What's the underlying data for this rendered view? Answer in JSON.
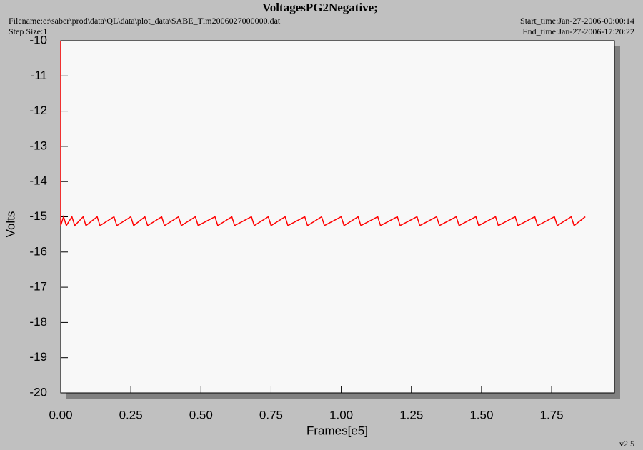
{
  "chart_data": {
    "type": "line",
    "title": "VoltagesPG2Negative;",
    "filename": "Filename:e:\\saber\\prod\\data\\QL\\data\\plot_data\\SABE_Tlm2006027000000.dat",
    "step_size": "Step Size:1",
    "start_time": "Start_time:Jan-27-2006-00:00:14",
    "end_time": "End_time:Jan-27-2006-17:20:22",
    "version": "v2.5",
    "x_label": "Frames[e5]",
    "y_label": "Volts",
    "xlim": [
      0,
      1.974
    ],
    "xticks": [
      {
        "value": 0,
        "label": "0.00"
      },
      0.25,
      {
        "value": 0.5,
        "label": "0.50"
      },
      0.75,
      {
        "value": 1,
        "label": "1.00"
      },
      1.25,
      {
        "value": 1.5,
        "label": "1.50"
      },
      1.75
    ],
    "ylim": [
      -20,
      -10
    ],
    "yticks": [
      -10,
      -11,
      -12,
      -13,
      -14,
      -15,
      -16,
      -17,
      -18,
      -19,
      -20
    ],
    "series": [
      {
        "color": "#ff0000",
        "x": [
          0,
          0,
          0.01,
          0.02,
          0.04,
          0.05,
          0.08,
          0.09,
          0.13,
          0.14,
          0.19,
          0.2,
          0.25,
          0.26,
          0.3,
          0.31,
          0.36,
          0.37,
          0.42,
          0.43,
          0.48,
          0.49,
          0.55,
          0.56,
          0.61,
          0.62,
          0.68,
          0.69,
          0.74,
          0.75,
          0.8,
          0.81,
          0.87,
          0.88,
          0.93,
          0.94,
          1.0,
          1.01,
          1.06,
          1.07,
          1.13,
          1.14,
          1.2,
          1.21,
          1.27,
          1.28,
          1.34,
          1.35,
          1.41,
          1.42,
          1.48,
          1.49,
          1.55,
          1.56,
          1.62,
          1.63,
          1.69,
          1.7,
          1.76,
          1.77,
          1.82,
          1.83,
          1.87
        ],
        "values": [
          -10,
          -15.25,
          -15,
          -15.25,
          -15,
          -15.25,
          -15,
          -15.25,
          -15,
          -15.25,
          -15,
          -15.25,
          -15,
          -15.25,
          -15,
          -15.25,
          -15,
          -15.25,
          -15,
          -15.25,
          -15,
          -15.25,
          -15,
          -15.25,
          -15,
          -15.25,
          -15,
          -15.25,
          -15,
          -15.25,
          -15,
          -15.25,
          -15,
          -15.25,
          -15,
          -15.25,
          -15,
          -15.25,
          -15,
          -15.25,
          -15,
          -15.25,
          -15,
          -15.25,
          -15,
          -15.25,
          -15,
          -15.25,
          -15,
          -15.25,
          -15,
          -15.25,
          -15,
          -15.25,
          -15,
          -15.25,
          -15,
          -15.25,
          -15,
          -15.25,
          -15,
          -15.25,
          -15
        ]
      }
    ]
  }
}
